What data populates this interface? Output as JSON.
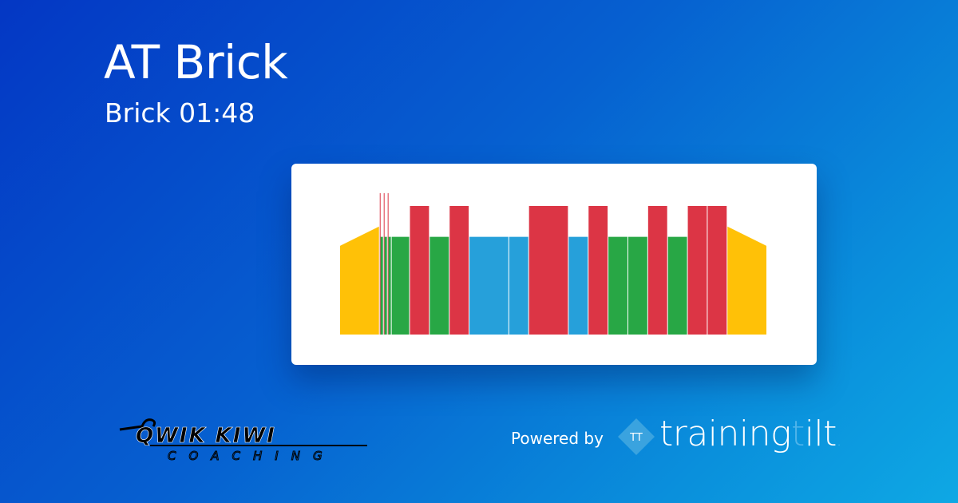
{
  "header": {
    "title": "AT Brick",
    "subtitle": "Brick 01:48"
  },
  "footer": {
    "coach_logo_text": "QWIK KIWI",
    "coach_logo_subtext": "COACHING",
    "powered_by": "Powered by",
    "brand_icon_text": "TT",
    "brand_name_a": "training",
    "brand_name_b": "t",
    "brand_name_c": "ilt",
    "brand_dot": "."
  },
  "colors": {
    "warmup": "#ffc107",
    "red": "#dc3545",
    "green": "#28a745",
    "blue": "#26a0da"
  },
  "chart_data": {
    "type": "bar",
    "xlabel": "",
    "ylabel": "",
    "grid": false,
    "segments": [
      {
        "zone": "warmup",
        "duration": 10,
        "start": 69,
        "end": 84
      },
      {
        "zone": "red",
        "duration": 0.2,
        "start": 110,
        "end": 110
      },
      {
        "zone": "green",
        "duration": 0.8,
        "start": 76,
        "end": 76
      },
      {
        "zone": "red",
        "duration": 0.2,
        "start": 110,
        "end": 110
      },
      {
        "zone": "green",
        "duration": 0.8,
        "start": 76,
        "end": 76
      },
      {
        "zone": "red",
        "duration": 0.2,
        "start": 110,
        "end": 110
      },
      {
        "zone": "green",
        "duration": 0.8,
        "start": 76,
        "end": 76
      },
      {
        "zone": "green",
        "duration": 4.6,
        "start": 76,
        "end": 76
      },
      {
        "zone": "red",
        "duration": 5,
        "start": 100,
        "end": 100
      },
      {
        "zone": "green",
        "duration": 5,
        "start": 76,
        "end": 76
      },
      {
        "zone": "red",
        "duration": 5,
        "start": 100,
        "end": 100
      },
      {
        "zone": "blue",
        "duration": 10,
        "start": 76,
        "end": 76
      },
      {
        "zone": "blue",
        "duration": 5,
        "start": 76,
        "end": 76
      },
      {
        "zone": "red",
        "duration": 10,
        "start": 100,
        "end": 100
      },
      {
        "zone": "blue",
        "duration": 5,
        "start": 76,
        "end": 76
      },
      {
        "zone": "red",
        "duration": 5,
        "start": 100,
        "end": 100
      },
      {
        "zone": "green",
        "duration": 5,
        "start": 76,
        "end": 76
      },
      {
        "zone": "green",
        "duration": 5,
        "start": 76,
        "end": 76
      },
      {
        "zone": "red",
        "duration": 5,
        "start": 100,
        "end": 100
      },
      {
        "zone": "green",
        "duration": 5,
        "start": 76,
        "end": 76
      },
      {
        "zone": "red",
        "duration": 5,
        "start": 100,
        "end": 100
      },
      {
        "zone": "red",
        "duration": 5,
        "start": 100,
        "end": 100
      },
      {
        "zone": "warmup",
        "duration": 10,
        "start": 84,
        "end": 69
      }
    ]
  }
}
